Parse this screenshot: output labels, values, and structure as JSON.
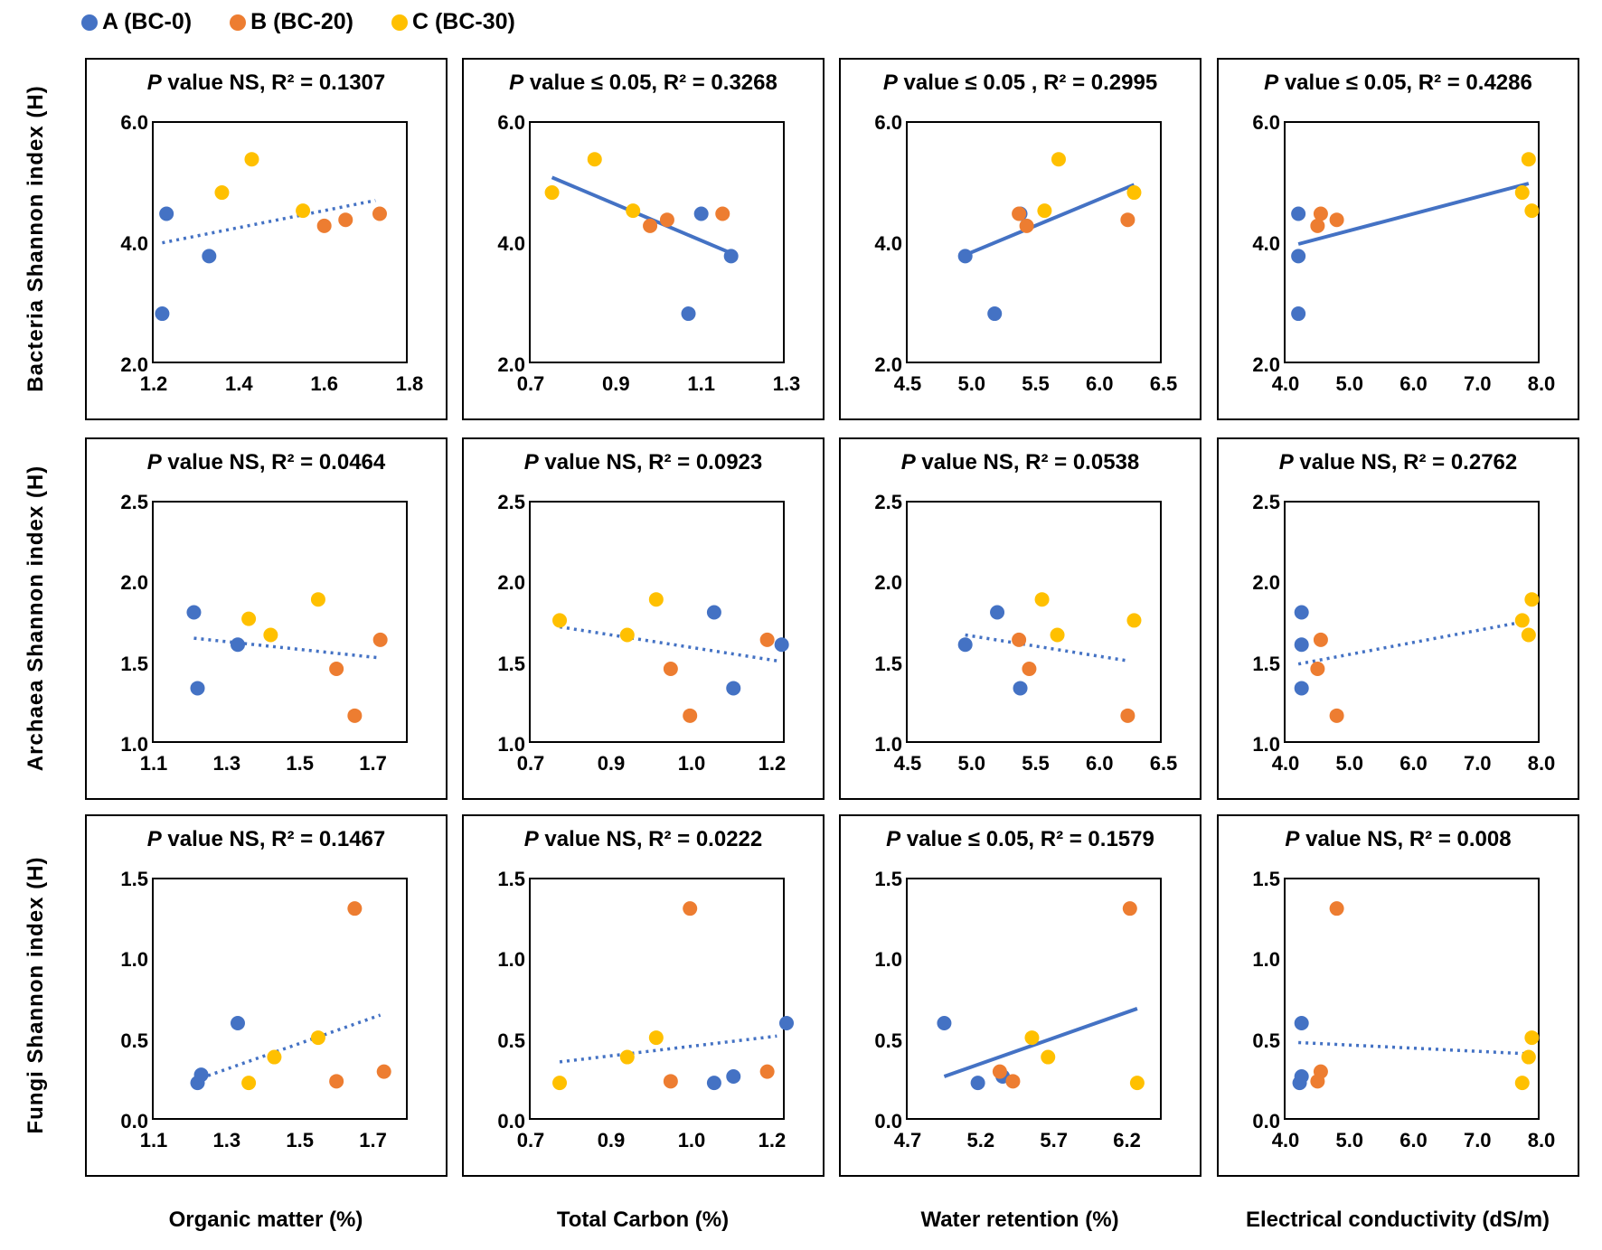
{
  "chart_data": {
    "type": "scatter",
    "legend": {
      "placement": "top-left",
      "entries": [
        {
          "name": "A (BC-0)",
          "color": "#4472C4"
        },
        {
          "name": "B (BC-20)",
          "color": "#ED7D31"
        },
        {
          "name": "C (BC-30)",
          "color": "#FFC000"
        }
      ]
    },
    "row_labels": [
      "Bacteria Shannon index (H)",
      "Archaea Shannon index (H)",
      "Fungi Shannon index (H)"
    ],
    "col_labels": [
      "Organic matter (%)",
      "Total Carbon (%)",
      "Water retention (%)",
      "Electrical conductivity (dS/m)"
    ],
    "panels": [
      {
        "p": "P",
        "title": " value NS, R² = 0.1307",
        "xlim": [
          1.2,
          1.8
        ],
        "ylim": [
          2,
          6
        ],
        "xticks": [
          "1.2",
          "1.4",
          "1.6",
          "1.8"
        ],
        "yticks": [
          "2.0",
          "4.0",
          "6.0"
        ],
        "trend": {
          "style": "dotted",
          "x": [
            1.22,
            1.72
          ],
          "y": [
            4.02,
            4.72
          ]
        },
        "series": [
          {
            "x": [
              1.22,
              1.23,
              1.33
            ],
            "y": [
              2.85,
              4.5,
              3.8
            ]
          },
          {
            "x": [
              1.6,
              1.65,
              1.73
            ],
            "y": [
              4.3,
              4.4,
              4.5
            ]
          },
          {
            "x": [
              1.36,
              1.43,
              1.55
            ],
            "y": [
              4.85,
              5.4,
              4.55
            ]
          }
        ]
      },
      {
        "p": "P",
        "title": " value ≤ 0.05, R² = 0.3268",
        "xlim": [
          0.7,
          1.3
        ],
        "ylim": [
          2,
          6
        ],
        "xticks": [
          "0.7",
          "0.9",
          "1.1",
          "1.3"
        ],
        "yticks": [
          "2.0",
          "4.0",
          "6.0"
        ],
        "trend": {
          "style": "solid",
          "x": [
            0.75,
            1.17
          ],
          "y": [
            5.1,
            3.85
          ]
        },
        "series": [
          {
            "x": [
              1.07,
              1.1,
              1.17
            ],
            "y": [
              2.85,
              4.5,
              3.8
            ]
          },
          {
            "x": [
              0.98,
              1.02,
              1.15
            ],
            "y": [
              4.3,
              4.4,
              4.5
            ]
          },
          {
            "x": [
              0.75,
              0.85,
              0.94
            ],
            "y": [
              4.85,
              5.4,
              4.55
            ]
          }
        ]
      },
      {
        "p": "P",
        "title": " value ≤ 0.05 , R² = 0.2995",
        "xlim": [
          4.5,
          6.5
        ],
        "ylim": [
          2,
          6
        ],
        "xticks": [
          "4.5",
          "5.0",
          "5.5",
          "6.0",
          "6.5"
        ],
        "yticks": [
          "2.0",
          "4.0",
          "6.0"
        ],
        "trend": {
          "style": "solid",
          "x": [
            4.95,
            6.27
          ],
          "y": [
            3.82,
            4.98
          ]
        },
        "series": [
          {
            "x": [
              4.95,
              5.18,
              5.38
            ],
            "y": [
              3.8,
              2.85,
              4.5
            ]
          },
          {
            "x": [
              5.37,
              5.43,
              6.22
            ],
            "y": [
              4.5,
              4.3,
              4.4
            ]
          },
          {
            "x": [
              5.57,
              5.68,
              6.27
            ],
            "y": [
              4.55,
              5.4,
              4.85
            ]
          }
        ]
      },
      {
        "p": "P",
        "title": " value ≤ 0.05, R² = 0.4286",
        "xlim": [
          4.0,
          8.0
        ],
        "ylim": [
          2,
          6
        ],
        "xticks": [
          "4.0",
          "5.0",
          "6.0",
          "7.0",
          "8.0"
        ],
        "yticks": [
          "2.0",
          "4.0",
          "6.0"
        ],
        "trend": {
          "style": "solid",
          "x": [
            4.2,
            7.8
          ],
          "y": [
            4.0,
            5.0
          ]
        },
        "series": [
          {
            "x": [
              4.2,
              4.2,
              4.2
            ],
            "y": [
              4.5,
              3.8,
              2.85
            ]
          },
          {
            "x": [
              4.5,
              4.55,
              4.8
            ],
            "y": [
              4.3,
              4.5,
              4.4
            ]
          },
          {
            "x": [
              7.8,
              7.7,
              7.85
            ],
            "y": [
              5.4,
              4.85,
              4.55
            ]
          }
        ]
      },
      {
        "p": "P",
        "title": " value NS, R² = 0.0464",
        "xlim": [
          1.1,
          1.8
        ],
        "ylim": [
          1,
          2.5
        ],
        "xticks": [
          "1.1",
          "1.3",
          "1.5",
          "1.7"
        ],
        "yticks": [
          "1.0",
          "1.5",
          "2.0",
          "2.5"
        ],
        "trend": {
          "style": "dotted",
          "x": [
            1.21,
            1.71
          ],
          "y": [
            1.66,
            1.54
          ]
        },
        "series": [
          {
            "x": [
              1.21,
              1.22,
              1.33
            ],
            "y": [
              1.82,
              1.35,
              1.62
            ]
          },
          {
            "x": [
              1.6,
              1.65,
              1.72
            ],
            "y": [
              1.47,
              1.18,
              1.65
            ]
          },
          {
            "x": [
              1.36,
              1.42,
              1.55
            ],
            "y": [
              1.78,
              1.68,
              1.9
            ]
          }
        ]
      },
      {
        "p": "P",
        "title": " value NS, R² = 0.0923",
        "xlim": [
          0.7,
          1.23
        ],
        "ylim": [
          1,
          2.5
        ],
        "xticks": [
          "0.7",
          "0.9",
          "1.0",
          "1.2"
        ],
        "yticks": [
          "1.0",
          "1.5",
          "2.0",
          "2.5"
        ],
        "trend": {
          "style": "dotted",
          "x": [
            0.76,
            1.21
          ],
          "y": [
            1.73,
            1.52
          ]
        },
        "series": [
          {
            "x": [
              1.08,
              1.12,
              1.22
            ],
            "y": [
              1.82,
              1.35,
              1.62
            ]
          },
          {
            "x": [
              0.99,
              1.03,
              1.19
            ],
            "y": [
              1.47,
              1.18,
              1.65
            ]
          },
          {
            "x": [
              0.76,
              0.9,
              0.96
            ],
            "y": [
              1.77,
              1.68,
              1.9
            ]
          }
        ]
      },
      {
        "p": "P",
        "title": " value NS, R² = 0.0538",
        "xlim": [
          4.5,
          6.5
        ],
        "ylim": [
          1,
          2.5
        ],
        "xticks": [
          "4.5",
          "5.0",
          "5.5",
          "6.0",
          "6.5"
        ],
        "yticks": [
          "1.0",
          "1.5",
          "2.0",
          "2.5"
        ],
        "trend": {
          "style": "dotted",
          "x": [
            4.95,
            6.22
          ],
          "y": [
            1.68,
            1.52
          ]
        },
        "series": [
          {
            "x": [
              4.95,
              5.2,
              5.38
            ],
            "y": [
              1.62,
              1.82,
              1.35
            ]
          },
          {
            "x": [
              5.37,
              5.45,
              6.22
            ],
            "y": [
              1.65,
              1.47,
              1.18
            ]
          },
          {
            "x": [
              5.55,
              5.67,
              6.27
            ],
            "y": [
              1.9,
              1.68,
              1.77
            ]
          }
        ]
      },
      {
        "p": "P",
        "title": " value NS, R² = 0.2762",
        "xlim": [
          4.0,
          8.0
        ],
        "ylim": [
          1,
          2.5
        ],
        "xticks": [
          "4.0",
          "5.0",
          "6.0",
          "7.0",
          "8.0"
        ],
        "yticks": [
          "1.0",
          "1.5",
          "2.0",
          "2.5"
        ],
        "trend": {
          "style": "dotted",
          "x": [
            4.2,
            7.7
          ],
          "y": [
            1.5,
            1.76
          ]
        },
        "series": [
          {
            "x": [
              4.25,
              4.25,
              4.25
            ],
            "y": [
              1.82,
              1.62,
              1.35
            ]
          },
          {
            "x": [
              4.55,
              4.5,
              4.8
            ],
            "y": [
              1.65,
              1.47,
              1.18
            ]
          },
          {
            "x": [
              7.85,
              7.7,
              7.8
            ],
            "y": [
              1.9,
              1.77,
              1.68
            ]
          }
        ]
      },
      {
        "p": "P",
        "title": " value NS, R² = 0.1467",
        "xlim": [
          1.1,
          1.8
        ],
        "ylim": [
          0,
          1.5
        ],
        "xticks": [
          "1.1",
          "1.3",
          "1.5",
          "1.7"
        ],
        "yticks": [
          "0.0",
          "0.5",
          "1.0",
          "1.5"
        ],
        "trend": {
          "style": "dotted",
          "x": [
            1.23,
            1.72
          ],
          "y": [
            0.27,
            0.66
          ]
        },
        "series": [
          {
            "x": [
              1.22,
              1.23,
              1.33
            ],
            "y": [
              0.24,
              0.29,
              0.61
            ]
          },
          {
            "x": [
              1.6,
              1.65,
              1.73
            ],
            "y": [
              0.25,
              1.32,
              0.31
            ]
          },
          {
            "x": [
              1.36,
              1.43,
              1.55
            ],
            "y": [
              0.24,
              0.4,
              0.52
            ]
          }
        ]
      },
      {
        "p": "P",
        "title": " value NS, R² = 0.0222",
        "xlim": [
          0.7,
          1.23
        ],
        "ylim": [
          0,
          1.5
        ],
        "xticks": [
          "0.7",
          "0.9",
          "1.0",
          "1.2"
        ],
        "yticks": [
          "0.0",
          "0.5",
          "1.0",
          "1.5"
        ],
        "trend": {
          "style": "dotted",
          "x": [
            0.76,
            1.21
          ],
          "y": [
            0.37,
            0.53
          ]
        },
        "series": [
          {
            "x": [
              1.08,
              1.12,
              1.23
            ],
            "y": [
              0.24,
              0.28,
              0.61
            ]
          },
          {
            "x": [
              0.99,
              1.03,
              1.19
            ],
            "y": [
              0.25,
              1.32,
              0.31
            ]
          },
          {
            "x": [
              0.76,
              0.9,
              0.96
            ],
            "y": [
              0.24,
              0.4,
              0.52
            ]
          }
        ]
      },
      {
        "p": "P",
        "title": " value ≤ 0.05, R² = 0.1579",
        "xlim": [
          4.7,
          6.45
        ],
        "ylim": [
          0,
          1.5
        ],
        "xticks": [
          "4.7",
          "5.2",
          "5.7",
          "6.2"
        ],
        "yticks": [
          "0.0",
          "0.5",
          "1.0",
          "1.5"
        ],
        "trend": {
          "style": "solid",
          "x": [
            4.95,
            6.27
          ],
          "y": [
            0.28,
            0.7
          ]
        },
        "series": [
          {
            "x": [
              4.95,
              5.18,
              5.35
            ],
            "y": [
              0.61,
              0.24,
              0.28
            ]
          },
          {
            "x": [
              5.33,
              5.42,
              6.22
            ],
            "y": [
              0.31,
              0.25,
              1.32
            ]
          },
          {
            "x": [
              5.55,
              5.66,
              6.27
            ],
            "y": [
              0.52,
              0.4,
              0.24
            ]
          }
        ]
      },
      {
        "p": "P",
        "title": " value NS, R² = 0.008",
        "xlim": [
          4.0,
          8.0
        ],
        "ylim": [
          0,
          1.5
        ],
        "xticks": [
          "4.0",
          "5.0",
          "6.0",
          "7.0",
          "8.0"
        ],
        "yticks": [
          "0.0",
          "0.5",
          "1.0",
          "1.5"
        ],
        "trend": {
          "style": "dotted",
          "x": [
            4.2,
            7.8
          ],
          "y": [
            0.49,
            0.42
          ]
        },
        "series": [
          {
            "x": [
              4.25,
              4.25,
              4.22
            ],
            "y": [
              0.61,
              0.28,
              0.24
            ]
          },
          {
            "x": [
              4.55,
              4.5,
              4.8
            ],
            "y": [
              0.31,
              0.25,
              1.32
            ]
          },
          {
            "x": [
              7.85,
              7.8,
              7.7
            ],
            "y": [
              0.52,
              0.4,
              0.24
            ]
          }
        ]
      }
    ]
  }
}
